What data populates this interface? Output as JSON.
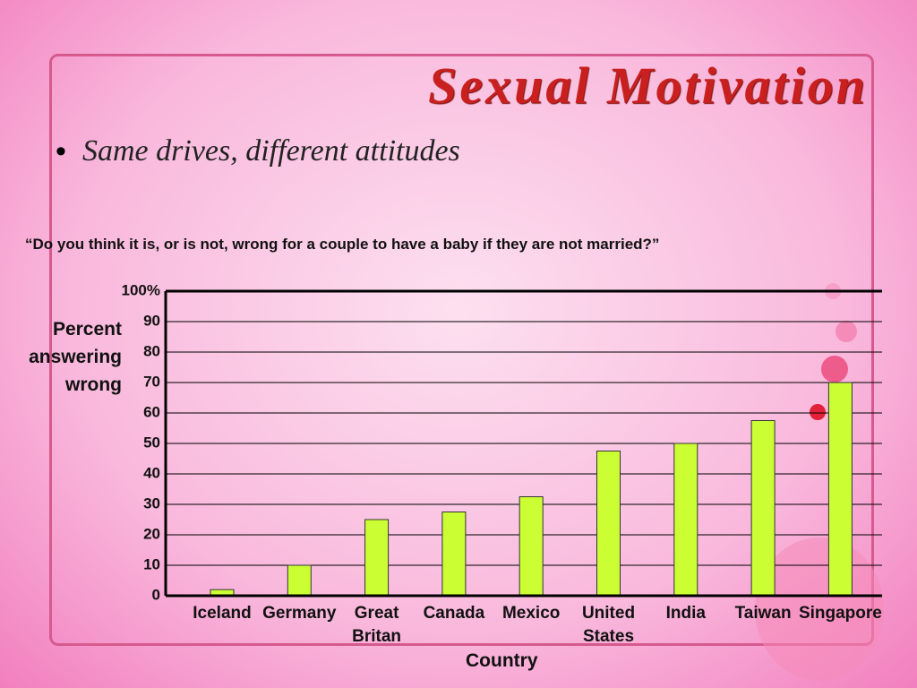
{
  "slide": {
    "title": "Sexual Motivation",
    "bullet": "Same drives, different attitudes"
  },
  "chart_data": {
    "type": "bar",
    "title": "“Do you think it is, or is not, wrong for a couple to have a baby if they are not married?”",
    "y_label": "Percent answering wrong",
    "x_label": "Country",
    "categories": [
      "Iceland",
      "Germany",
      "Great Britan",
      "Canada",
      "Mexico",
      "United States",
      "India",
      "Taiwan",
      "Singapore"
    ],
    "values": [
      2,
      10,
      25,
      27.5,
      32.5,
      47.5,
      50,
      57.5,
      70
    ],
    "color": "#ccff33",
    "ylim": [
      0,
      100
    ],
    "yticks": [
      0,
      10,
      20,
      30,
      40,
      50,
      60,
      70,
      80,
      90,
      {
        "value": 100,
        "label": "100%"
      }
    ],
    "grid": true
  }
}
